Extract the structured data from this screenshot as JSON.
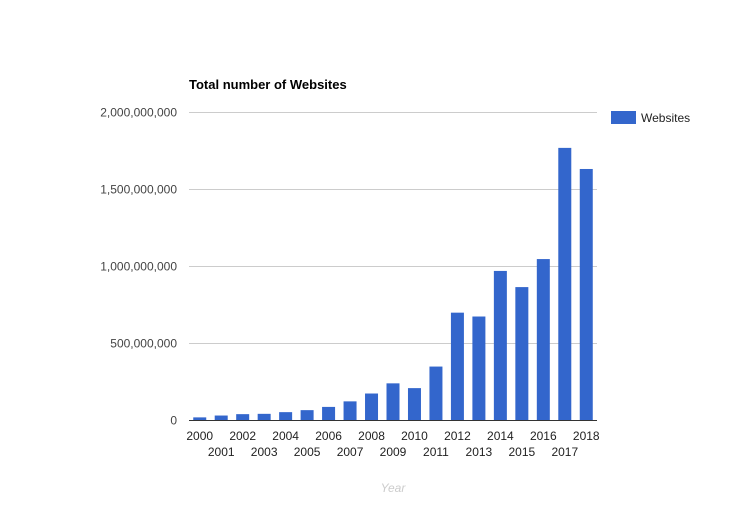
{
  "chart_data": {
    "type": "bar",
    "title": "Total number of Websites",
    "xlabel": "Year",
    "ylabel": "",
    "ylim": [
      0,
      2000000000
    ],
    "yticks": [
      0,
      500000000,
      1000000000,
      1500000000,
      2000000000
    ],
    "ytick_labels": [
      "0",
      "500,000,000",
      "1,000,000,000",
      "1,500,000,000",
      "2,000,000,000"
    ],
    "grid": true,
    "legend_position": "right",
    "categories": [
      "2000",
      "2001",
      "2002",
      "2003",
      "2004",
      "2005",
      "2006",
      "2007",
      "2008",
      "2009",
      "2010",
      "2011",
      "2012",
      "2013",
      "2014",
      "2015",
      "2016",
      "2017",
      "2018"
    ],
    "series": [
      {
        "name": "Websites",
        "color": "#3366cc",
        "values": [
          17000000,
          29000000,
          38000000,
          40000000,
          51000000,
          64000000,
          85000000,
          121000000,
          172000000,
          238000000,
          207000000,
          347000000,
          697000000,
          672000000,
          968000000,
          863000000,
          1045000000,
          1767000000,
          1630000000
        ]
      }
    ]
  }
}
